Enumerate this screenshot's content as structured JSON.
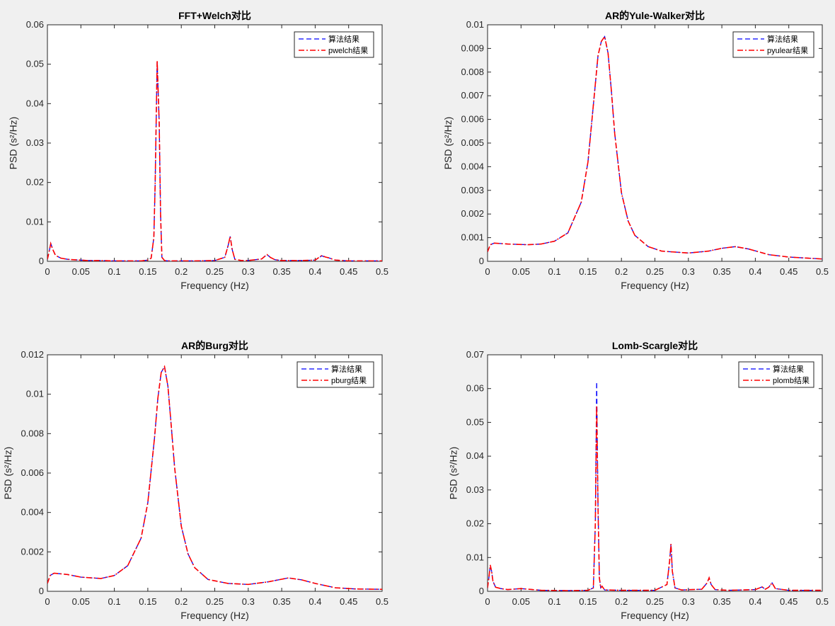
{
  "chart_data": [
    {
      "type": "line",
      "title": "FFT+Welch对比",
      "xlabel": "Frequency (Hz)",
      "ylabel": "PSD (s²/Hz)",
      "xlim": [
        0,
        0.5
      ],
      "ylim": [
        0,
        0.06
      ],
      "xticks": [
        0,
        0.05,
        0.1,
        0.15,
        0.2,
        0.25,
        0.3,
        0.35,
        0.4,
        0.45,
        0.5
      ],
      "yticks": [
        0,
        0.01,
        0.02,
        0.03,
        0.04,
        0.05,
        0.06
      ],
      "xtick_labels": [
        "0",
        "0.05",
        "0.1",
        "0.15",
        "0.2",
        "0.25",
        "0.3",
        "0.35",
        "0.4",
        "0.45",
        "0.5"
      ],
      "ytick_labels": [
        "0",
        "0.01",
        "0.02",
        "0.03",
        "0.04",
        "0.05",
        "0.06"
      ],
      "legend_location": "top-right",
      "series": [
        {
          "name": "算法结果",
          "color": "#0000ff",
          "style": "dashed",
          "x": [
            0,
            0.002,
            0.005,
            0.008,
            0.012,
            0.02,
            0.03,
            0.04,
            0.06,
            0.08,
            0.1,
            0.12,
            0.14,
            0.15,
            0.155,
            0.159,
            0.161,
            0.164,
            0.167,
            0.169,
            0.171,
            0.175,
            0.18,
            0.2,
            0.22,
            0.25,
            0.265,
            0.27,
            0.273,
            0.276,
            0.28,
            0.29,
            0.3,
            0.32,
            0.328,
            0.333,
            0.34,
            0.35,
            0.38,
            0.4,
            0.41,
            0.415,
            0.42,
            0.43,
            0.45,
            0.5
          ],
          "y": [
            0.0005,
            0.002,
            0.0045,
            0.003,
            0.0015,
            0.0008,
            0.0005,
            0.0004,
            0.0002,
            0.0002,
            0.0001,
            0.0001,
            0.0001,
            0.0003,
            0.0008,
            0.006,
            0.02,
            0.0505,
            0.035,
            0.012,
            0.001,
            0.0002,
            0.0001,
            0.0001,
            0.0001,
            0.0002,
            0.001,
            0.004,
            0.0063,
            0.003,
            0.0005,
            0.0002,
            0.0002,
            0.0006,
            0.0017,
            0.001,
            0.0004,
            0.0002,
            0.0002,
            0.0003,
            0.0014,
            0.001,
            0.0009,
            0.0003,
            0.0001,
            0.0001
          ]
        },
        {
          "name": "pwelch结果",
          "color": "#ff0000",
          "style": "dash-dot",
          "x": [
            0,
            0.002,
            0.005,
            0.008,
            0.012,
            0.02,
            0.03,
            0.04,
            0.06,
            0.08,
            0.1,
            0.12,
            0.14,
            0.15,
            0.155,
            0.159,
            0.161,
            0.164,
            0.167,
            0.169,
            0.171,
            0.175,
            0.18,
            0.2,
            0.22,
            0.25,
            0.265,
            0.27,
            0.273,
            0.276,
            0.28,
            0.29,
            0.3,
            0.32,
            0.328,
            0.333,
            0.34,
            0.35,
            0.38,
            0.4,
            0.41,
            0.415,
            0.42,
            0.43,
            0.45,
            0.5
          ],
          "y": [
            0.0005,
            0.002,
            0.0045,
            0.003,
            0.0015,
            0.0008,
            0.0005,
            0.0004,
            0.0002,
            0.0002,
            0.0001,
            0.0001,
            0.0001,
            0.0003,
            0.0008,
            0.006,
            0.02,
            0.051,
            0.035,
            0.012,
            0.001,
            0.0002,
            0.0001,
            0.0001,
            0.0001,
            0.0002,
            0.001,
            0.004,
            0.0063,
            0.003,
            0.0005,
            0.0002,
            0.0002,
            0.0006,
            0.0017,
            0.001,
            0.0004,
            0.0002,
            0.0002,
            0.0003,
            0.0015,
            0.0011,
            0.0009,
            0.0003,
            0.0001,
            0.0001
          ]
        }
      ]
    },
    {
      "type": "line",
      "title": "AR的Yule-Walker对比",
      "xlabel": "Frequency (Hz)",
      "ylabel": "PSD (s²/Hz)",
      "xlim": [
        0,
        0.5
      ],
      "ylim": [
        0,
        0.01
      ],
      "xticks": [
        0,
        0.05,
        0.1,
        0.15,
        0.2,
        0.25,
        0.3,
        0.35,
        0.4,
        0.45,
        0.5
      ],
      "yticks": [
        0,
        0.001,
        0.002,
        0.003,
        0.004,
        0.005,
        0.006,
        0.007,
        0.008,
        0.009,
        0.01
      ],
      "xtick_labels": [
        "0",
        "0.05",
        "0.1",
        "0.15",
        "0.2",
        "0.25",
        "0.3",
        "0.35",
        "0.4",
        "0.45",
        "0.5"
      ],
      "ytick_labels": [
        "0",
        "0.001",
        "0.002",
        "0.003",
        "0.004",
        "0.005",
        "0.006",
        "0.007",
        "0.008",
        "0.009",
        "0.01"
      ],
      "legend_location": "top-right",
      "series": [
        {
          "name": "算法结果",
          "color": "#0000ff",
          "style": "dashed",
          "x": [
            0,
            0.004,
            0.01,
            0.03,
            0.06,
            0.08,
            0.1,
            0.12,
            0.14,
            0.15,
            0.16,
            0.165,
            0.17,
            0.175,
            0.18,
            0.185,
            0.19,
            0.2,
            0.21,
            0.22,
            0.24,
            0.26,
            0.3,
            0.33,
            0.35,
            0.37,
            0.39,
            0.42,
            0.45,
            0.5
          ],
          "y": [
            0.0004,
            0.0007,
            0.00077,
            0.00073,
            0.0007,
            0.00073,
            0.00085,
            0.0012,
            0.0025,
            0.0042,
            0.0072,
            0.0087,
            0.0093,
            0.0095,
            0.0088,
            0.0072,
            0.0054,
            0.0029,
            0.0017,
            0.0011,
            0.00062,
            0.00043,
            0.00035,
            0.00043,
            0.00055,
            0.00062,
            0.00052,
            0.00028,
            0.00018,
            0.0001
          ]
        },
        {
          "name": "pyulear结果",
          "color": "#ff0000",
          "style": "dash-dot",
          "x": [
            0,
            0.004,
            0.01,
            0.03,
            0.06,
            0.08,
            0.1,
            0.12,
            0.14,
            0.15,
            0.16,
            0.165,
            0.17,
            0.175,
            0.18,
            0.185,
            0.19,
            0.2,
            0.21,
            0.22,
            0.24,
            0.26,
            0.3,
            0.33,
            0.35,
            0.37,
            0.39,
            0.42,
            0.45,
            0.5
          ],
          "y": [
            0.0004,
            0.0007,
            0.00077,
            0.00073,
            0.0007,
            0.00073,
            0.00085,
            0.0012,
            0.0025,
            0.0042,
            0.0072,
            0.0087,
            0.0093,
            0.0095,
            0.0088,
            0.0072,
            0.0054,
            0.0029,
            0.0017,
            0.0011,
            0.00062,
            0.00043,
            0.00035,
            0.00043,
            0.00055,
            0.00062,
            0.00052,
            0.00028,
            0.00018,
            0.0001
          ]
        }
      ]
    },
    {
      "type": "line",
      "title": "AR的Burg对比",
      "xlabel": "Frequency (Hz)",
      "ylabel": "PSD (s²/Hz)",
      "xlim": [
        0,
        0.5
      ],
      "ylim": [
        0,
        0.012
      ],
      "xticks": [
        0,
        0.05,
        0.1,
        0.15,
        0.2,
        0.25,
        0.3,
        0.35,
        0.4,
        0.45,
        0.5
      ],
      "yticks": [
        0,
        0.002,
        0.004,
        0.006,
        0.008,
        0.01,
        0.012
      ],
      "xtick_labels": [
        "0",
        "0.05",
        "0.1",
        "0.15",
        "0.2",
        "0.25",
        "0.3",
        "0.35",
        "0.4",
        "0.45",
        "0.5"
      ],
      "ytick_labels": [
        "0",
        "0.002",
        "0.004",
        "0.006",
        "0.008",
        "0.01",
        "0.012"
      ],
      "legend_location": "top-right",
      "series": [
        {
          "name": "算法结果",
          "color": "#0000ff",
          "style": "dashed",
          "x": [
            0,
            0.004,
            0.01,
            0.03,
            0.05,
            0.08,
            0.1,
            0.12,
            0.14,
            0.15,
            0.16,
            0.165,
            0.17,
            0.175,
            0.18,
            0.185,
            0.19,
            0.2,
            0.21,
            0.22,
            0.24,
            0.27,
            0.3,
            0.33,
            0.36,
            0.38,
            0.4,
            0.43,
            0.46,
            0.5
          ],
          "y": [
            0.0004,
            0.0008,
            0.00092,
            0.00085,
            0.00072,
            0.00065,
            0.0008,
            0.0013,
            0.0027,
            0.0045,
            0.0078,
            0.0098,
            0.0111,
            0.0114,
            0.0104,
            0.0084,
            0.0063,
            0.0033,
            0.0019,
            0.0012,
            0.0006,
            0.0004,
            0.00035,
            0.00048,
            0.00068,
            0.00058,
            0.0004,
            0.00018,
            0.00012,
            0.0001
          ]
        },
        {
          "name": "pburg结果",
          "color": "#ff0000",
          "style": "dash-dot",
          "x": [
            0,
            0.004,
            0.01,
            0.03,
            0.05,
            0.08,
            0.1,
            0.12,
            0.14,
            0.15,
            0.16,
            0.165,
            0.17,
            0.175,
            0.18,
            0.185,
            0.19,
            0.2,
            0.21,
            0.22,
            0.24,
            0.27,
            0.3,
            0.33,
            0.36,
            0.38,
            0.4,
            0.43,
            0.46,
            0.5
          ],
          "y": [
            0.0004,
            0.0008,
            0.00092,
            0.00085,
            0.00072,
            0.00065,
            0.0008,
            0.0013,
            0.0027,
            0.0045,
            0.0078,
            0.0098,
            0.0111,
            0.0114,
            0.0104,
            0.0084,
            0.0063,
            0.0033,
            0.0019,
            0.0012,
            0.0006,
            0.0004,
            0.00035,
            0.00048,
            0.00068,
            0.00058,
            0.0004,
            0.00018,
            0.00012,
            0.0001
          ]
        }
      ]
    },
    {
      "type": "line",
      "title": "Lomb-Scargle对比",
      "xlabel": "Frequency (Hz)",
      "ylabel": "PSD (s²/Hz)",
      "xlim": [
        0,
        0.5
      ],
      "ylim": [
        0,
        0.07
      ],
      "xticks": [
        0,
        0.05,
        0.1,
        0.15,
        0.2,
        0.25,
        0.3,
        0.35,
        0.4,
        0.45,
        0.5
      ],
      "yticks": [
        0,
        0.01,
        0.02,
        0.03,
        0.04,
        0.05,
        0.06,
        0.07
      ],
      "xtick_labels": [
        "0",
        "0.05",
        "0.1",
        "0.15",
        "0.2",
        "0.25",
        "0.3",
        "0.35",
        "0.4",
        "0.45",
        "0.5"
      ],
      "ytick_labels": [
        "0",
        "0.01",
        "0.02",
        "0.03",
        "0.04",
        "0.05",
        "0.06",
        "0.07"
      ],
      "legend_location": "top-right",
      "series": [
        {
          "name": "算法结果",
          "color": "#0000ff",
          "style": "dashed",
          "x": [
            0,
            0.002,
            0.004,
            0.006,
            0.008,
            0.012,
            0.02,
            0.03,
            0.05,
            0.08,
            0.12,
            0.15,
            0.158,
            0.161,
            0.163,
            0.165,
            0.167,
            0.169,
            0.171,
            0.175,
            0.2,
            0.25,
            0.268,
            0.272,
            0.274,
            0.276,
            0.28,
            0.29,
            0.32,
            0.328,
            0.331,
            0.334,
            0.34,
            0.36,
            0.4,
            0.41,
            0.415,
            0.42,
            0.425,
            0.43,
            0.45,
            0.5
          ],
          "y": [
            0.001,
            0.004,
            0.0075,
            0.006,
            0.003,
            0.0012,
            0.0008,
            0.0005,
            0.0008,
            0.0003,
            0.0002,
            0.0003,
            0.001,
            0.02,
            0.062,
            0.025,
            0.004,
            0.001,
            0.0015,
            0.0004,
            0.0003,
            0.0003,
            0.002,
            0.009,
            0.014,
            0.006,
            0.001,
            0.0004,
            0.0006,
            0.0025,
            0.004,
            0.002,
            0.0005,
            0.0003,
            0.0005,
            0.0013,
            0.0006,
            0.0012,
            0.0025,
            0.0008,
            0.0003,
            0.0003
          ]
        },
        {
          "name": "plomb结果",
          "color": "#ff0000",
          "style": "dash-dot",
          "x": [
            0,
            0.002,
            0.004,
            0.006,
            0.008,
            0.012,
            0.02,
            0.03,
            0.05,
            0.08,
            0.12,
            0.15,
            0.158,
            0.161,
            0.163,
            0.165,
            0.167,
            0.169,
            0.171,
            0.175,
            0.2,
            0.25,
            0.268,
            0.272,
            0.274,
            0.276,
            0.28,
            0.29,
            0.32,
            0.328,
            0.331,
            0.334,
            0.34,
            0.36,
            0.4,
            0.41,
            0.415,
            0.42,
            0.425,
            0.43,
            0.45,
            0.5
          ],
          "y": [
            0.001,
            0.004,
            0.0078,
            0.006,
            0.003,
            0.0012,
            0.0008,
            0.0005,
            0.0008,
            0.0003,
            0.0002,
            0.0003,
            0.001,
            0.02,
            0.055,
            0.025,
            0.004,
            0.001,
            0.0015,
            0.0004,
            0.0003,
            0.0003,
            0.002,
            0.009,
            0.014,
            0.006,
            0.001,
            0.0004,
            0.0006,
            0.0025,
            0.004,
            0.002,
            0.0005,
            0.0003,
            0.0005,
            0.0013,
            0.0006,
            0.0012,
            0.0025,
            0.0008,
            0.0003,
            0.0003
          ]
        }
      ]
    }
  ]
}
